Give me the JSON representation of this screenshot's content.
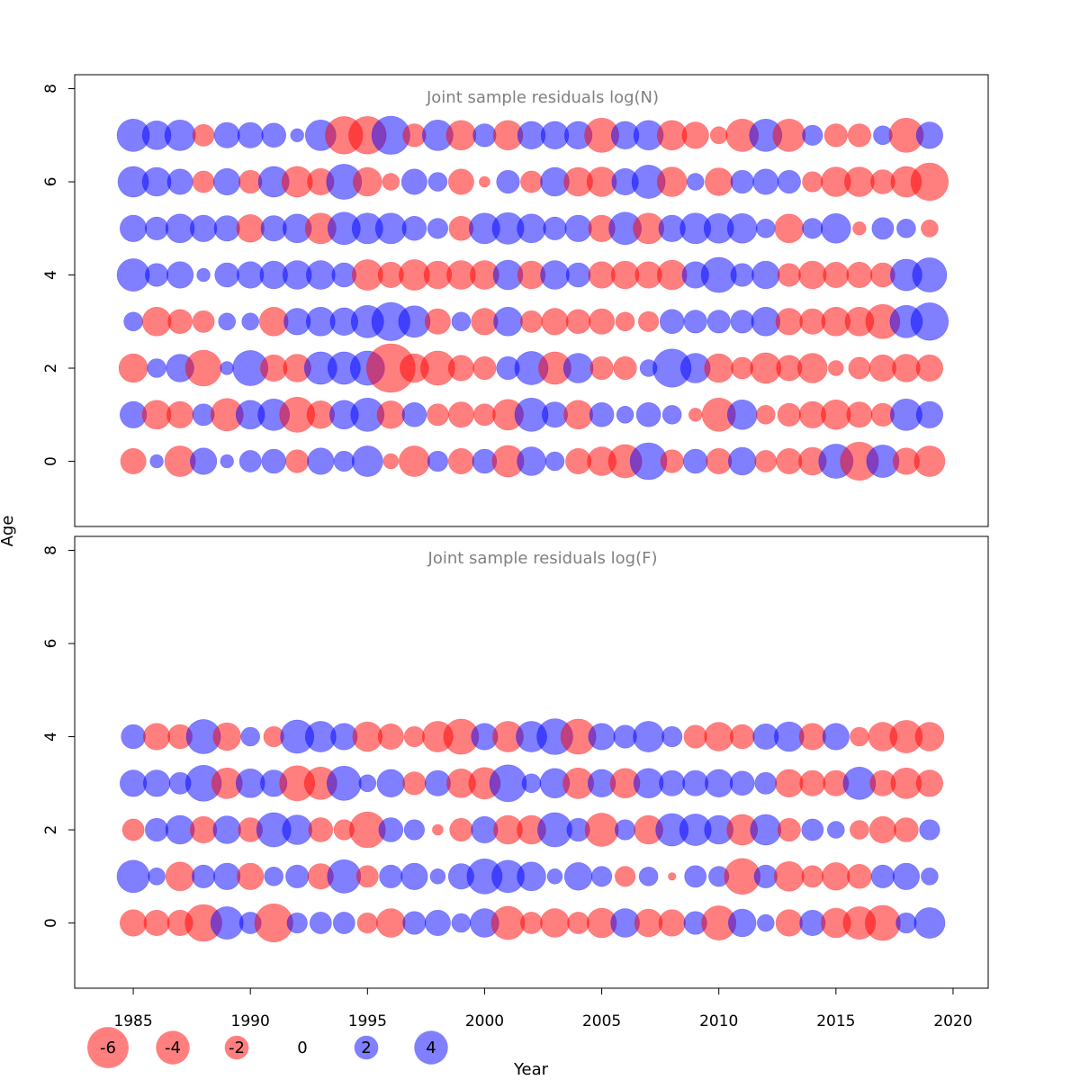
{
  "chart_data": {
    "type": "bubble",
    "xlabel": "Year",
    "ylabel": "Age",
    "xlim": [
      1982.5,
      2021.5
    ],
    "x_ticks": [
      1985,
      1990,
      1995,
      2000,
      2005,
      2010,
      2015,
      2020
    ],
    "years": [
      1985,
      1986,
      1987,
      1988,
      1989,
      1990,
      1991,
      1992,
      1993,
      1994,
      1995,
      1996,
      1997,
      1998,
      1999,
      2000,
      2001,
      2002,
      2003,
      2004,
      2005,
      2006,
      2007,
      2008,
      2009,
      2010,
      2011,
      2012,
      2013,
      2014,
      2015,
      2016,
      2017,
      2018,
      2019
    ],
    "colors": {
      "positive": "#0000ff",
      "negative": "#ff0000",
      "alpha": 0.5
    },
    "panels": [
      {
        "title": "Joint sample residuals log(N)",
        "ylim": [
          -1.4,
          8.3
        ],
        "y_ticks": [
          0,
          2,
          4,
          6,
          8
        ],
        "ages": [
          0,
          1,
          2,
          3,
          4,
          5,
          6,
          7
        ],
        "residuals": {
          "7": [
            1.8,
            1.4,
            1.6,
            -0.8,
            1.1,
            1.1,
            1.0,
            0.3,
            1.6,
            -2.4,
            -2.4,
            2.5,
            -0.9,
            1.6,
            -1.5,
            0.9,
            -1.5,
            1.3,
            1.3,
            1.3,
            -2.0,
            1.3,
            1.5,
            -1.5,
            -1.2,
            -0.5,
            -1.8,
            1.8,
            -1.8,
            0.7,
            -0.9,
            -0.9,
            0.6,
            -2.0,
            1.2
          ],
          "6": [
            1.6,
            1.4,
            1.1,
            -0.8,
            1.2,
            -0.9,
            1.6,
            -1.6,
            -1.2,
            2.1,
            -1.4,
            -0.5,
            1.1,
            0.6,
            -1.1,
            -0.2,
            0.9,
            -0.8,
            1.4,
            -1.4,
            -1.5,
            1.2,
            1.9,
            -1.5,
            0.5,
            -1.3,
            0.9,
            1.1,
            0.9,
            -0.7,
            -1.5,
            -1.5,
            -1.0,
            -1.6,
            -2.4
          ],
          "5": [
            1.2,
            0.9,
            1.4,
            1.2,
            1.1,
            -1.3,
            1.1,
            1.4,
            -1.6,
            1.8,
            1.6,
            1.6,
            1.0,
            0.7,
            -1.0,
            1.6,
            1.7,
            1.4,
            0.9,
            1.2,
            -1.2,
            1.8,
            -1.6,
            1.2,
            1.6,
            1.5,
            1.5,
            0.6,
            -1.4,
            0.7,
            1.5,
            -0.3,
            0.8,
            0.6,
            -0.5
          ],
          "4": [
            1.8,
            0.9,
            1.2,
            0.3,
            1.0,
            1.2,
            1.3,
            1.4,
            1.4,
            1.0,
            -1.6,
            -1.1,
            -1.6,
            -1.3,
            -1.4,
            -1.4,
            1.5,
            -1.3,
            1.4,
            1.0,
            -1.2,
            -1.3,
            -1.2,
            -1.5,
            1.2,
            2.1,
            0.9,
            1.3,
            -0.9,
            -1.3,
            -1.1,
            -1.1,
            -1.0,
            1.7,
            2.0
          ],
          "3": [
            0.6,
            -1.4,
            -1.0,
            -0.8,
            0.5,
            0.5,
            -1.4,
            1.2,
            1.4,
            1.3,
            1.8,
            2.5,
            1.7,
            -1.1,
            0.6,
            -1.2,
            1.4,
            -0.8,
            -1.2,
            -1.0,
            -1.1,
            -0.6,
            -0.7,
            1.0,
            0.9,
            0.9,
            0.9,
            1.4,
            -1.2,
            -1.1,
            -1.4,
            -1.4,
            -2.0,
            1.8,
            2.4
          ],
          "2": [
            -1.4,
            0.6,
            1.3,
            -2.2,
            0.3,
            2.1,
            -1.2,
            -1.3,
            1.8,
            1.8,
            2.0,
            -4.0,
            -1.4,
            -2.0,
            -1.1,
            -0.9,
            0.9,
            1.9,
            -1.8,
            1.5,
            -0.9,
            -0.9,
            0.5,
            2.5,
            1.5,
            -1.4,
            -0.8,
            -1.6,
            -1.1,
            -1.5,
            -0.4,
            -0.8,
            -1.2,
            -1.3,
            -1.2
          ],
          "1": [
            1.2,
            -1.4,
            -1.2,
            0.8,
            -1.8,
            1.4,
            1.7,
            -2.1,
            -1.3,
            1.4,
            1.9,
            -1.3,
            1.0,
            -0.8,
            -1.1,
            -0.8,
            -1.6,
            1.9,
            1.1,
            -1.4,
            1.0,
            0.5,
            1.0,
            0.6,
            -0.3,
            -1.9,
            1.5,
            -0.6,
            -0.9,
            -1.2,
            -1.5,
            -1.1,
            -0.9,
            1.7,
            1.2
          ],
          "0": [
            -1.1,
            0.3,
            -1.6,
            1.2,
            0.3,
            0.8,
            1.0,
            -0.9,
            1.2,
            0.7,
            1.6,
            -0.4,
            -1.6,
            0.7,
            -1.1,
            1.0,
            -1.7,
            1.4,
            0.6,
            -1.1,
            -1.4,
            -1.9,
            2.3,
            -0.9,
            1.0,
            -1.1,
            1.3,
            -0.8,
            -1.1,
            -1.3,
            2.0,
            -2.5,
            1.8,
            -1.2,
            -1.6
          ]
        }
      },
      {
        "title": "Joint sample residuals log(F)",
        "ylim": [
          -1.4,
          8.3
        ],
        "y_ticks": [
          0,
          2,
          4,
          6,
          8
        ],
        "ages": [
          0,
          1,
          2,
          3,
          4
        ],
        "residuals": {
          "4": [
            1.0,
            -1.2,
            -1.0,
            2.0,
            -1.3,
            0.6,
            -0.7,
            1.9,
            1.6,
            1.2,
            -1.5,
            -1.1,
            -0.7,
            -1.6,
            -2.1,
            1.2,
            -1.6,
            1.6,
            2.2,
            -2.1,
            1.2,
            0.9,
            1.6,
            0.7,
            -0.9,
            -1.4,
            -1.0,
            1.1,
            1.5,
            -1.2,
            1.2,
            -0.6,
            -1.4,
            -1.8,
            -1.4
          ],
          "3": [
            1.2,
            1.2,
            0.8,
            2.2,
            -1.6,
            1.4,
            1.2,
            -2.1,
            -1.8,
            2.0,
            0.5,
            1.3,
            -0.9,
            1.1,
            -1.4,
            -1.7,
            2.3,
            0.6,
            1.5,
            -1.6,
            1.3,
            -1.5,
            1.5,
            1.1,
            1.1,
            1.3,
            1.0,
            0.8,
            -1.3,
            -1.1,
            -1.1,
            1.8,
            -1.1,
            -1.6,
            -1.2
          ],
          "2": [
            -0.8,
            0.9,
            1.4,
            -1.2,
            1.3,
            -1.0,
            2.0,
            1.5,
            -1.0,
            -0.7,
            -2.2,
            1.0,
            0.7,
            -0.2,
            -0.9,
            1.2,
            -1.4,
            -1.4,
            2.0,
            0.9,
            -1.9,
            0.7,
            -1.4,
            1.8,
            1.7,
            1.4,
            -1.6,
            1.6,
            -0.9,
            0.8,
            0.5,
            -0.6,
            -1.2,
            -1.0,
            0.7
          ],
          "1": [
            1.8,
            0.5,
            -1.4,
            0.9,
            1.2,
            -1.2,
            0.6,
            0.9,
            -1.1,
            1.9,
            -0.8,
            0.9,
            1.2,
            0.4,
            1.1,
            2.1,
            1.8,
            1.4,
            0.4,
            1.3,
            0.7,
            -0.7,
            0.6,
            -0.1,
            0.8,
            0.7,
            -2.2,
            0.9,
            -1.5,
            -0.8,
            -1.3,
            -1.0,
            0.9,
            1.2,
            0.5
          ],
          "0": [
            -1.2,
            -1.1,
            -1.1,
            -2.3,
            1.8,
            0.8,
            -2.5,
            0.7,
            0.8,
            0.8,
            -0.7,
            -1.4,
            0.9,
            1.1,
            0.6,
            1.4,
            -1.9,
            -0.8,
            -1.4,
            -0.8,
            -1.5,
            1.4,
            -1.3,
            -1.2,
            0.9,
            -2.0,
            1.3,
            0.5,
            -1.2,
            1.1,
            -1.5,
            -1.8,
            -2.1,
            0.7,
            1.6
          ]
        }
      }
    ],
    "legend": {
      "placement": "bottom",
      "values": [
        -6,
        -4,
        -2,
        0,
        2,
        4
      ],
      "labels": [
        "-6",
        "-4",
        "-2",
        "0",
        "2",
        "4"
      ]
    }
  }
}
